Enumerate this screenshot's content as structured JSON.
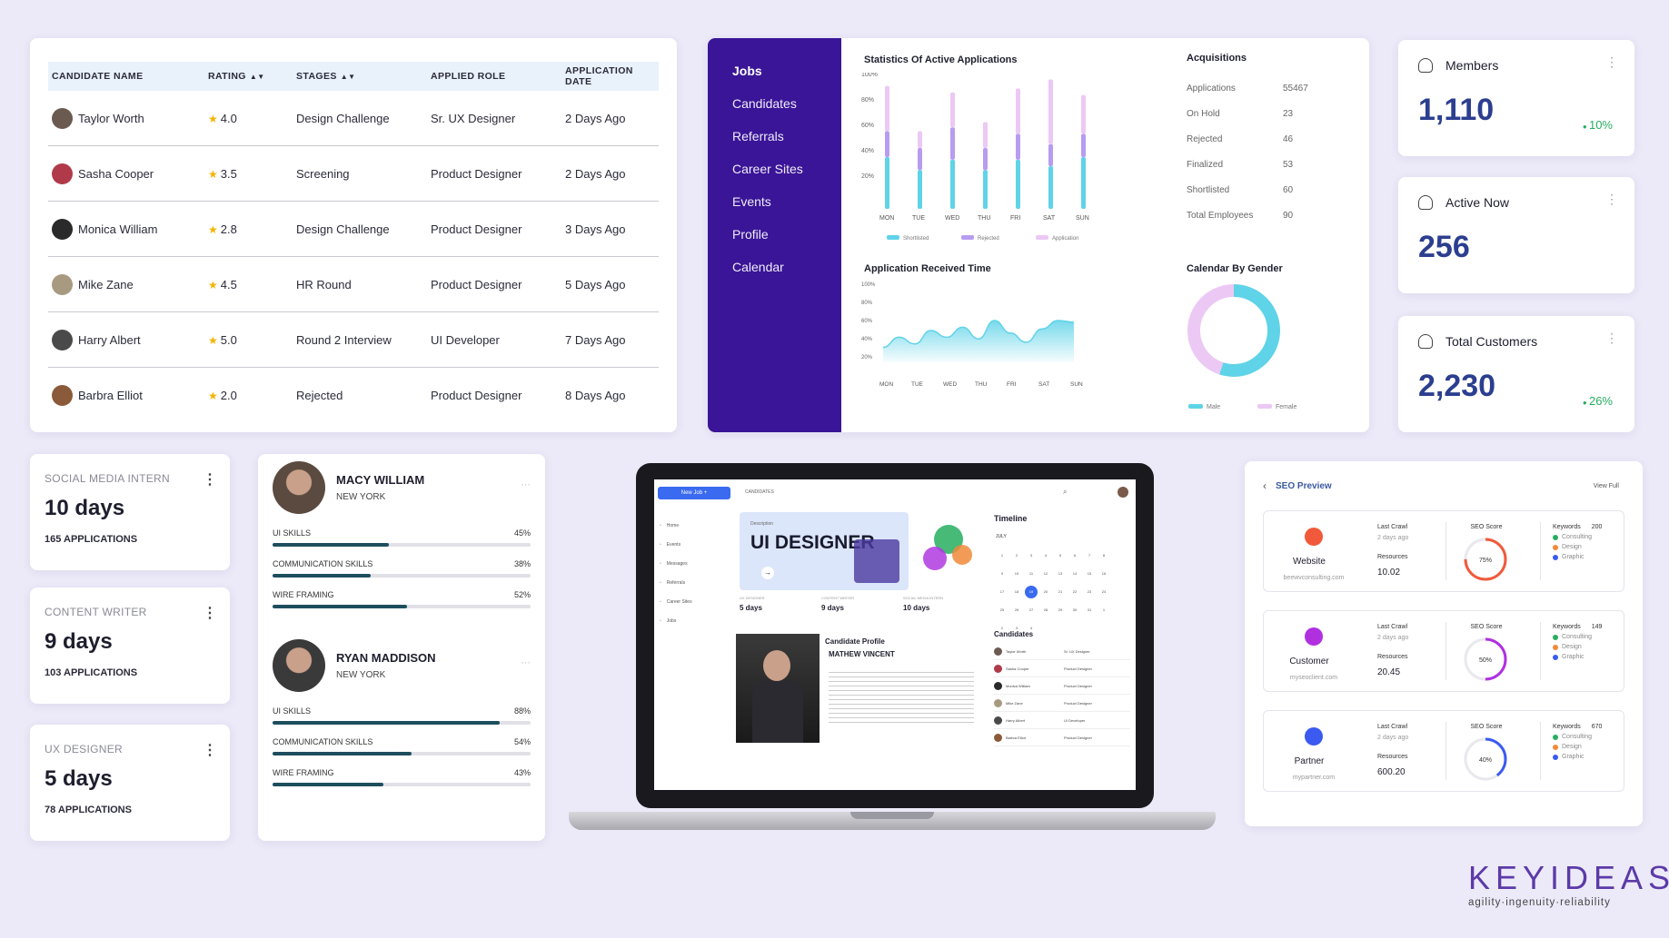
{
  "candidates": {
    "headers": {
      "name": "CANDIDATE NAME",
      "rating": "RATING",
      "stages": "STAGES",
      "role": "APPLIED ROLE",
      "date": "APPLICATION DATE"
    },
    "rows": [
      {
        "name": "Taylor Worth",
        "rating": "4.0",
        "stage": "Design Challenge",
        "role": "Sr. UX Designer",
        "date": "2 Days Ago",
        "avatar_color": "#6b5a50"
      },
      {
        "name": "Sasha Cooper",
        "rating": "3.5",
        "stage": "Screening",
        "role": "Product Designer",
        "date": "2 Days Ago",
        "avatar_color": "#b03a4a"
      },
      {
        "name": "Monica William",
        "rating": "2.8",
        "stage": "Design Challenge",
        "role": "Product Designer",
        "date": "3 Days Ago",
        "avatar_color": "#2a2a2a"
      },
      {
        "name": "Mike Zane",
        "rating": "4.5",
        "stage": "HR Round",
        "role": "Product Designer",
        "date": "5 Days Ago",
        "avatar_color": "#a89a80"
      },
      {
        "name": "Harry Albert",
        "rating": "5.0",
        "stage": "Round 2 Interview",
        "role": "UI Developer",
        "date": "7 Days Ago",
        "avatar_color": "#4a4a4a"
      },
      {
        "name": "Barbra Elliot",
        "rating": "2.0",
        "stage": "Rejected",
        "role": "Product Designer",
        "date": "8 Days Ago",
        "avatar_color": "#8a5a3a"
      }
    ]
  },
  "jobs": {
    "nav": [
      "Jobs",
      "Candidates",
      "Referrals",
      "Career Sites",
      "Events",
      "Profile",
      "Calendar"
    ],
    "stats_title": "Statistics Of Active Applications",
    "received_title": "Application Received Time",
    "acq_title": "Acquisitions",
    "gender_title": "Calendar By Gender",
    "acquisitions": [
      {
        "label": "Applications",
        "value": "55467"
      },
      {
        "label": "On Hold",
        "value": "23"
      },
      {
        "label": "Rejected",
        "value": "46"
      },
      {
        "label": "Finalized",
        "value": "53"
      },
      {
        "label": "Shortlisted",
        "value": "60"
      },
      {
        "label": "Total Employees",
        "value": "90"
      }
    ],
    "legend": [
      "Shortlisted",
      "Rejected",
      "Application"
    ],
    "gender_legend": [
      "Male",
      "Female"
    ]
  },
  "chart_data": [
    {
      "type": "bar",
      "title": "Statistics Of Active Applications",
      "categories": [
        "MON",
        "TUE",
        "WED",
        "THU",
        "FRI",
        "SAT",
        "SUN"
      ],
      "y_ticks": [
        "100%",
        "80%",
        "60%",
        "40%",
        "20%"
      ],
      "ylim": [
        0,
        100
      ],
      "series": [
        {
          "name": "Shortlisted",
          "values": [
            40,
            30,
            38,
            30,
            38,
            33,
            40
          ],
          "color": "#5fd3e8"
        },
        {
          "name": "Rejected",
          "values": [
            20,
            17,
            25,
            17,
            20,
            17,
            18
          ],
          "color": "#b79cf0"
        },
        {
          "name": "Application",
          "values": [
            35,
            13,
            27,
            20,
            35,
            50,
            30
          ],
          "color": "#ecc8f4"
        }
      ]
    },
    {
      "type": "area",
      "title": "Application Received Time",
      "categories": [
        "MON",
        "TUE",
        "WED",
        "THU",
        "FRI",
        "SAT",
        "SUN"
      ],
      "y_ticks": [
        "100%",
        "80%",
        "60%",
        "40%",
        "20%"
      ],
      "ylim": [
        0,
        100
      ],
      "x": [
        0,
        0.5,
        1,
        1.5,
        2,
        2.5,
        3,
        3.5,
        4,
        4.5,
        5,
        5.5,
        6
      ],
      "values": [
        18,
        30,
        22,
        38,
        30,
        42,
        28,
        50,
        35,
        24,
        40,
        50,
        48
      ],
      "color": "#5fd3e8"
    },
    {
      "type": "pie",
      "title": "Calendar By Gender",
      "labels": [
        "Male",
        "Female"
      ],
      "values": [
        55,
        45
      ],
      "colors": [
        "#5fd3e8",
        "#ecc8f4"
      ]
    }
  ],
  "stats": [
    {
      "label": "Members",
      "value": "1,110",
      "pct": "10%"
    },
    {
      "label": "Active Now",
      "value": "256",
      "pct": ""
    },
    {
      "label": "Total Customers",
      "value": "2,230",
      "pct": "26%"
    }
  ],
  "interns": [
    {
      "title": "SOCIAL MEDIA INTERN",
      "days": "10 days",
      "apps": "165 APPLICATIONS"
    },
    {
      "title": "CONTENT WRITER",
      "days": "9 days",
      "apps": "103 APPLICATIONS"
    },
    {
      "title": "UX DESIGNER",
      "days": "5 days",
      "apps": "78 APPLICATIONS"
    }
  ],
  "skills": [
    {
      "name": "MACY WILLIAM",
      "loc": "NEW YORK",
      "items": [
        {
          "label": "UI SKILLS",
          "pct": "45%",
          "value": 45
        },
        {
          "label": "COMMUNICATION SKILLS",
          "pct": "38%",
          "value": 38
        },
        {
          "label": "WIRE FRAMING",
          "pct": "52%",
          "value": 52
        }
      ]
    },
    {
      "name": "RYAN MADDISON",
      "loc": "NEW YORK",
      "items": [
        {
          "label": "UI SKILLS",
          "pct": "88%",
          "value": 88
        },
        {
          "label": "COMMUNICATION SKILLS",
          "pct": "54%",
          "value": 54
        },
        {
          "label": "WIRE FRAMING",
          "pct": "43%",
          "value": 43
        }
      ]
    }
  ],
  "laptop": {
    "new_job": "New Job +",
    "breadcrumb": "CANDIDATES",
    "nav": [
      "Home",
      "Events",
      "Messages",
      "Referrals",
      "Career Sites",
      "Jobs"
    ],
    "hero_small": "Description",
    "hero": "UI DESIGNER",
    "timeline": "Timeline",
    "month": "JULY",
    "mini": [
      {
        "t": "UX DESIGNER",
        "d": "5 days"
      },
      {
        "t": "CONTENT WRITER",
        "d": "9 days"
      },
      {
        "t": "SOCIAL MEDIA INTERN",
        "d": "10 days"
      }
    ],
    "profile_title": "Candidate Profile",
    "profile_name": "MATHEW VINCENT",
    "candidates_title": "Candidates"
  },
  "seo": {
    "title": "SEO Preview",
    "view": "View Full",
    "rows": [
      {
        "label": "Website",
        "url": "beewvconsulting.com",
        "crawl": "2 days ago",
        "resources": "10.02",
        "score": "75%",
        "score_val": 75,
        "keywords": "200",
        "color": "#f05a3a",
        "ring": "#f05a3a"
      },
      {
        "label": "Customer",
        "url": "myseoclient.com",
        "crawl": "2 days ago",
        "resources": "20.45",
        "score": "50%",
        "score_val": 50,
        "keywords": "149",
        "color": "#b030e0",
        "ring": "#b030e0"
      },
      {
        "label": "Partner",
        "url": "mypartner.com",
        "crawl": "2 days ago",
        "resources": "600.20",
        "score": "40%",
        "score_val": 40,
        "keywords": "670",
        "color": "#3a5af0",
        "ring": "#3a5af0"
      }
    ],
    "crawl_label": "Last Crawl",
    "resources_label": "Resources",
    "score_label": "SEO Score",
    "keywords_label": "Keywords",
    "kw_list": [
      "Consulting",
      "Design",
      "Graphic"
    ]
  },
  "brand": {
    "name": "KEYIDEAS",
    "tagline": "agility·ingenuity·reliability"
  }
}
